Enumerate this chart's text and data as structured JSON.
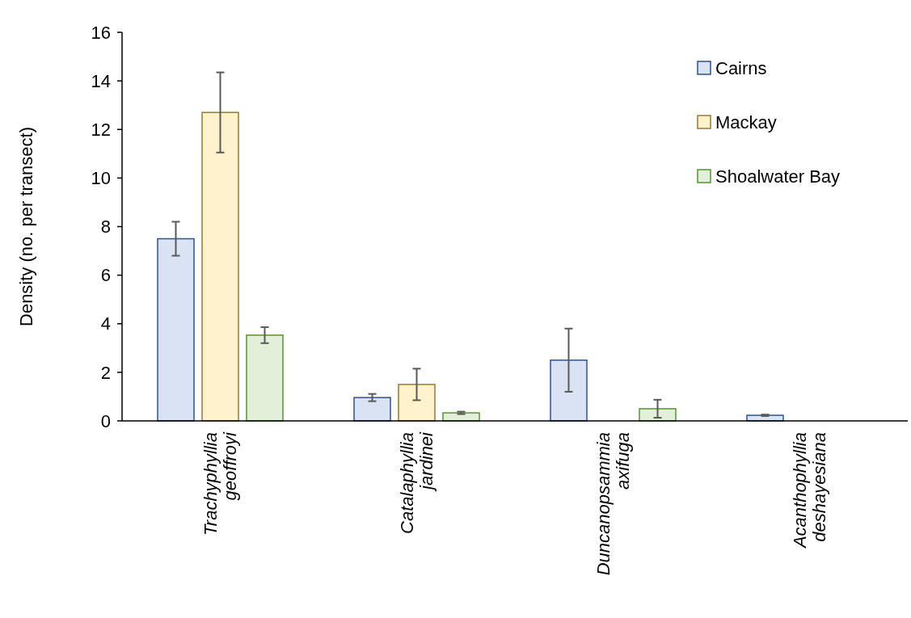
{
  "chart_data": {
    "type": "bar",
    "ylabel": "Density (no. per transect)",
    "categories": [
      "Trachyphyllia geoffroyi",
      "Catalaphyllia jardinei",
      "Duncanopsammia axifuga",
      "Acanthophyllia deshayesiana"
    ],
    "series": [
      {
        "name": "Cairns",
        "color": "#dae3f3",
        "values": [
          7.5,
          0.96,
          2.5,
          0.23
        ],
        "errors": [
          0.7,
          0.15,
          1.3,
          0.03
        ]
      },
      {
        "name": "Mackay",
        "color": "#fff2cc",
        "values": [
          12.7,
          1.5,
          0,
          0
        ],
        "errors": [
          1.65,
          0.65,
          null,
          null
        ]
      },
      {
        "name": "Shoalwater Bay",
        "color": "#e2f0d9",
        "values": [
          3.53,
          0.33,
          0.5,
          0
        ],
        "errors": [
          0.33,
          0.05,
          0.37,
          null
        ]
      }
    ],
    "ylim": [
      0,
      16
    ],
    "yticks": [
      0,
      2,
      4,
      6,
      8,
      10,
      12,
      14,
      16
    ],
    "grid": false,
    "legend": "top right"
  }
}
